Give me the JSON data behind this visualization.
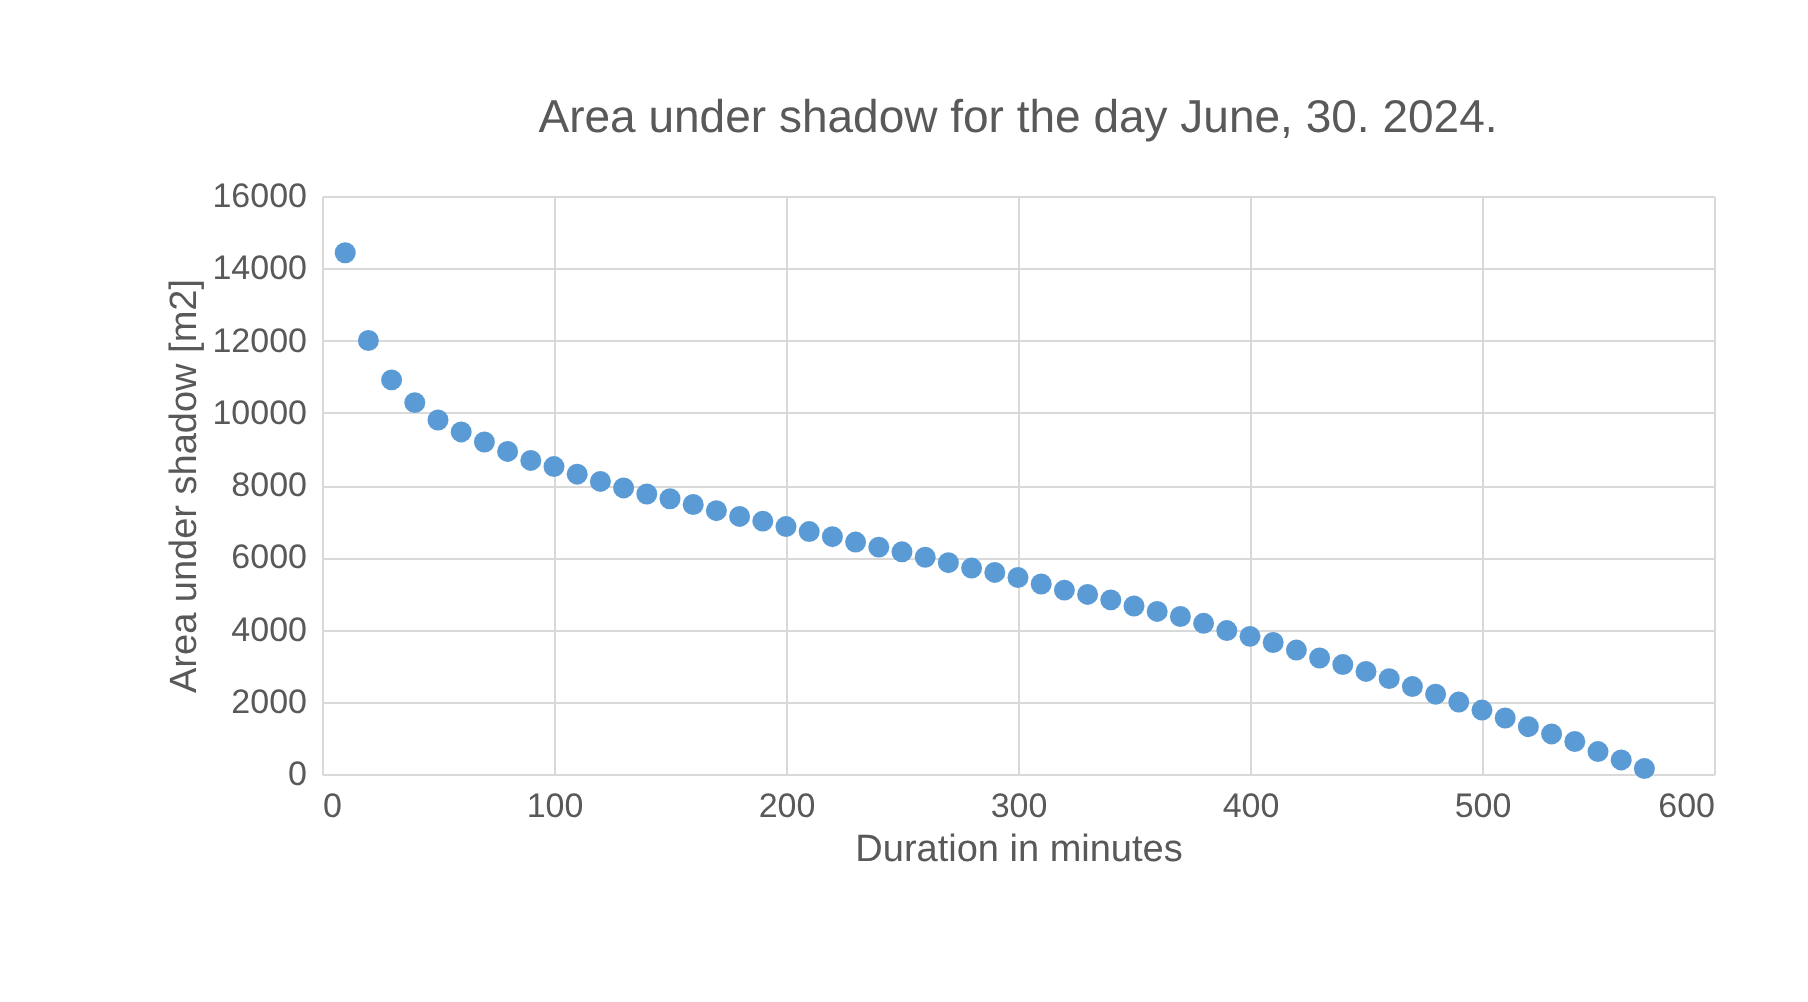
{
  "chart_data": {
    "type": "scatter",
    "title": "Area under shadow for the day June, 30. 2024.",
    "xlabel": "Duration in minutes",
    "ylabel": "Area under shadow [m2]",
    "x": [
      10,
      20,
      30,
      40,
      50,
      60,
      70,
      80,
      90,
      100,
      110,
      120,
      130,
      140,
      150,
      160,
      170,
      180,
      190,
      200,
      210,
      220,
      230,
      240,
      250,
      260,
      270,
      280,
      290,
      300,
      310,
      320,
      330,
      340,
      350,
      360,
      370,
      380,
      390,
      400,
      410,
      420,
      430,
      440,
      450,
      460,
      470,
      480,
      490,
      500,
      510,
      520,
      530,
      540,
      550,
      560,
      570
    ],
    "series": [
      {
        "color": "#5b9bd5",
        "values": [
          14430,
          12000,
          10910,
          10280,
          9800,
          9470,
          9190,
          8930,
          8680,
          8510,
          8300,
          8100,
          7920,
          7750,
          7620,
          7460,
          7290,
          7130,
          7000,
          6850,
          6710,
          6570,
          6420,
          6280,
          6150,
          6000,
          5850,
          5700,
          5580,
          5440,
          5260,
          5090,
          4970,
          4820,
          4650,
          4500,
          4360,
          4170,
          3970,
          3810,
          3640,
          3430,
          3210,
          3030,
          2840,
          2640,
          2420,
          2210,
          1990,
          1770,
          1550,
          1310,
          1110,
          900,
          620,
          390,
          150
        ]
      }
    ],
    "xlim": [
      0,
      600
    ],
    "xticks": [
      0,
      100,
      200,
      300,
      400,
      500,
      600
    ],
    "ylim": [
      0,
      16000
    ],
    "yticks": [
      0,
      2000,
      4000,
      6000,
      8000,
      10000,
      12000,
      14000,
      16000
    ],
    "grid": true,
    "marker": "circle"
  }
}
